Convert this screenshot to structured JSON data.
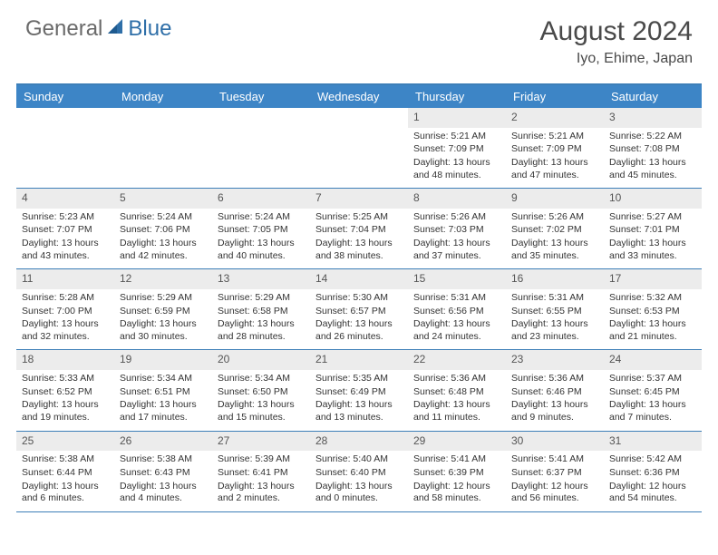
{
  "logo": {
    "text_general": "General",
    "text_blue": "Blue"
  },
  "title": "August 2024",
  "location": "Iyo, Ehime, Japan",
  "colors": {
    "header_bar": "#3d85c6",
    "border": "#3d7fb8",
    "daynum_bg": "#ececec",
    "logo_gray": "#6a6a6a",
    "logo_blue": "#2f6fa8",
    "text": "#333333"
  },
  "dow": [
    "Sunday",
    "Monday",
    "Tuesday",
    "Wednesday",
    "Thursday",
    "Friday",
    "Saturday"
  ],
  "weeks": [
    [
      {
        "n": "",
        "sr": "",
        "ss": "",
        "dl": ""
      },
      {
        "n": "",
        "sr": "",
        "ss": "",
        "dl": ""
      },
      {
        "n": "",
        "sr": "",
        "ss": "",
        "dl": ""
      },
      {
        "n": "",
        "sr": "",
        "ss": "",
        "dl": ""
      },
      {
        "n": "1",
        "sr": "Sunrise: 5:21 AM",
        "ss": "Sunset: 7:09 PM",
        "dl": "Daylight: 13 hours and 48 minutes."
      },
      {
        "n": "2",
        "sr": "Sunrise: 5:21 AM",
        "ss": "Sunset: 7:09 PM",
        "dl": "Daylight: 13 hours and 47 minutes."
      },
      {
        "n": "3",
        "sr": "Sunrise: 5:22 AM",
        "ss": "Sunset: 7:08 PM",
        "dl": "Daylight: 13 hours and 45 minutes."
      }
    ],
    [
      {
        "n": "4",
        "sr": "Sunrise: 5:23 AM",
        "ss": "Sunset: 7:07 PM",
        "dl": "Daylight: 13 hours and 43 minutes."
      },
      {
        "n": "5",
        "sr": "Sunrise: 5:24 AM",
        "ss": "Sunset: 7:06 PM",
        "dl": "Daylight: 13 hours and 42 minutes."
      },
      {
        "n": "6",
        "sr": "Sunrise: 5:24 AM",
        "ss": "Sunset: 7:05 PM",
        "dl": "Daylight: 13 hours and 40 minutes."
      },
      {
        "n": "7",
        "sr": "Sunrise: 5:25 AM",
        "ss": "Sunset: 7:04 PM",
        "dl": "Daylight: 13 hours and 38 minutes."
      },
      {
        "n": "8",
        "sr": "Sunrise: 5:26 AM",
        "ss": "Sunset: 7:03 PM",
        "dl": "Daylight: 13 hours and 37 minutes."
      },
      {
        "n": "9",
        "sr": "Sunrise: 5:26 AM",
        "ss": "Sunset: 7:02 PM",
        "dl": "Daylight: 13 hours and 35 minutes."
      },
      {
        "n": "10",
        "sr": "Sunrise: 5:27 AM",
        "ss": "Sunset: 7:01 PM",
        "dl": "Daylight: 13 hours and 33 minutes."
      }
    ],
    [
      {
        "n": "11",
        "sr": "Sunrise: 5:28 AM",
        "ss": "Sunset: 7:00 PM",
        "dl": "Daylight: 13 hours and 32 minutes."
      },
      {
        "n": "12",
        "sr": "Sunrise: 5:29 AM",
        "ss": "Sunset: 6:59 PM",
        "dl": "Daylight: 13 hours and 30 minutes."
      },
      {
        "n": "13",
        "sr": "Sunrise: 5:29 AM",
        "ss": "Sunset: 6:58 PM",
        "dl": "Daylight: 13 hours and 28 minutes."
      },
      {
        "n": "14",
        "sr": "Sunrise: 5:30 AM",
        "ss": "Sunset: 6:57 PM",
        "dl": "Daylight: 13 hours and 26 minutes."
      },
      {
        "n": "15",
        "sr": "Sunrise: 5:31 AM",
        "ss": "Sunset: 6:56 PM",
        "dl": "Daylight: 13 hours and 24 minutes."
      },
      {
        "n": "16",
        "sr": "Sunrise: 5:31 AM",
        "ss": "Sunset: 6:55 PM",
        "dl": "Daylight: 13 hours and 23 minutes."
      },
      {
        "n": "17",
        "sr": "Sunrise: 5:32 AM",
        "ss": "Sunset: 6:53 PM",
        "dl": "Daylight: 13 hours and 21 minutes."
      }
    ],
    [
      {
        "n": "18",
        "sr": "Sunrise: 5:33 AM",
        "ss": "Sunset: 6:52 PM",
        "dl": "Daylight: 13 hours and 19 minutes."
      },
      {
        "n": "19",
        "sr": "Sunrise: 5:34 AM",
        "ss": "Sunset: 6:51 PM",
        "dl": "Daylight: 13 hours and 17 minutes."
      },
      {
        "n": "20",
        "sr": "Sunrise: 5:34 AM",
        "ss": "Sunset: 6:50 PM",
        "dl": "Daylight: 13 hours and 15 minutes."
      },
      {
        "n": "21",
        "sr": "Sunrise: 5:35 AM",
        "ss": "Sunset: 6:49 PM",
        "dl": "Daylight: 13 hours and 13 minutes."
      },
      {
        "n": "22",
        "sr": "Sunrise: 5:36 AM",
        "ss": "Sunset: 6:48 PM",
        "dl": "Daylight: 13 hours and 11 minutes."
      },
      {
        "n": "23",
        "sr": "Sunrise: 5:36 AM",
        "ss": "Sunset: 6:46 PM",
        "dl": "Daylight: 13 hours and 9 minutes."
      },
      {
        "n": "24",
        "sr": "Sunrise: 5:37 AM",
        "ss": "Sunset: 6:45 PM",
        "dl": "Daylight: 13 hours and 7 minutes."
      }
    ],
    [
      {
        "n": "25",
        "sr": "Sunrise: 5:38 AM",
        "ss": "Sunset: 6:44 PM",
        "dl": "Daylight: 13 hours and 6 minutes."
      },
      {
        "n": "26",
        "sr": "Sunrise: 5:38 AM",
        "ss": "Sunset: 6:43 PM",
        "dl": "Daylight: 13 hours and 4 minutes."
      },
      {
        "n": "27",
        "sr": "Sunrise: 5:39 AM",
        "ss": "Sunset: 6:41 PM",
        "dl": "Daylight: 13 hours and 2 minutes."
      },
      {
        "n": "28",
        "sr": "Sunrise: 5:40 AM",
        "ss": "Sunset: 6:40 PM",
        "dl": "Daylight: 13 hours and 0 minutes."
      },
      {
        "n": "29",
        "sr": "Sunrise: 5:41 AM",
        "ss": "Sunset: 6:39 PM",
        "dl": "Daylight: 12 hours and 58 minutes."
      },
      {
        "n": "30",
        "sr": "Sunrise: 5:41 AM",
        "ss": "Sunset: 6:37 PM",
        "dl": "Daylight: 12 hours and 56 minutes."
      },
      {
        "n": "31",
        "sr": "Sunrise: 5:42 AM",
        "ss": "Sunset: 6:36 PM",
        "dl": "Daylight: 12 hours and 54 minutes."
      }
    ]
  ]
}
